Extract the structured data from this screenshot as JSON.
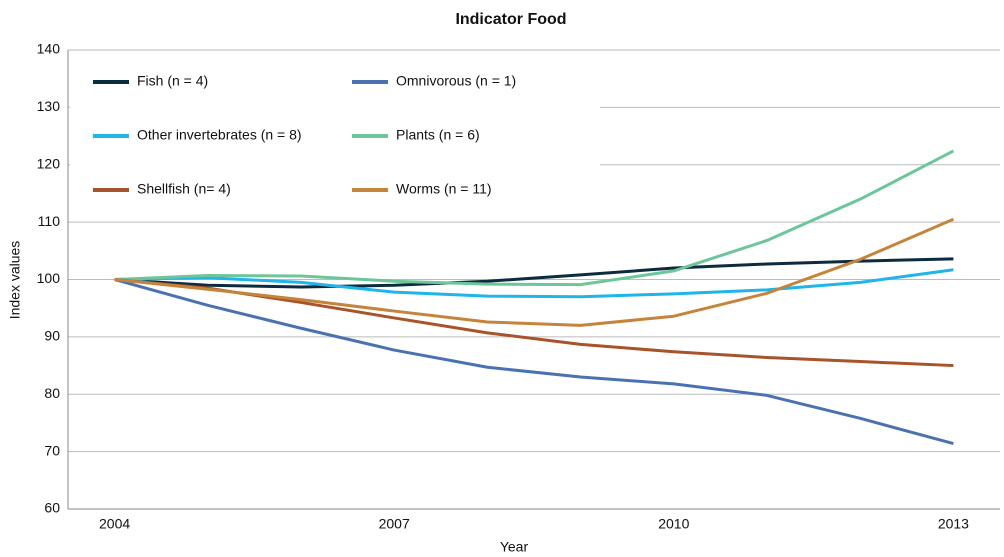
{
  "chart_data": {
    "type": "line",
    "title": "Indicator Food",
    "x_label": "Year",
    "y_label": "Index values",
    "x": [
      2004,
      2005,
      2006,
      2007,
      2008,
      2009,
      2010,
      2011,
      2012,
      2013
    ],
    "xlim": [
      2003.5,
      2013.5
    ],
    "xticks": [
      2004,
      2007,
      2010,
      2013
    ],
    "ylim": [
      60,
      140
    ],
    "yticks": [
      60,
      70,
      80,
      90,
      100,
      110,
      120,
      130,
      140
    ],
    "grid": true,
    "legend": "top-left",
    "series": [
      {
        "name": "Fish (n = 4)",
        "color": "#0d2b3e",
        "values": [
          100,
          99,
          98.7,
          99,
          99.7,
          100.8,
          102,
          102.7,
          103.2,
          103.6
        ]
      },
      {
        "name": "Omnivorous (n = 1)",
        "color": "#4a72b0",
        "values": [
          100,
          95.5,
          91.5,
          87.7,
          84.7,
          83,
          81.8,
          79.8,
          75.8,
          71.4
        ]
      },
      {
        "name": "Other invertebrates (n = 8)",
        "color": "#1fb5e8",
        "values": [
          100,
          100.3,
          99.5,
          97.8,
          97.1,
          97,
          97.5,
          98.2,
          99.5,
          101.7
        ]
      },
      {
        "name": "Plants (n = 6)",
        "color": "#6dc69a",
        "values": [
          100,
          100.7,
          100.6,
          99.7,
          99.2,
          99.1,
          101.5,
          106.8,
          114,
          122.4
        ]
      },
      {
        "name": "Shellfish (n= 4)",
        "color": "#a8532a",
        "values": [
          100,
          98.5,
          96,
          93.3,
          90.7,
          88.7,
          87.4,
          86.4,
          85.7,
          85
        ]
      },
      {
        "name": "Worms (n = 11)",
        "color": "#c4843c",
        "values": [
          100,
          98.3,
          96.5,
          94.5,
          92.6,
          92,
          93.6,
          97.6,
          103.5,
          110.5
        ]
      }
    ]
  }
}
